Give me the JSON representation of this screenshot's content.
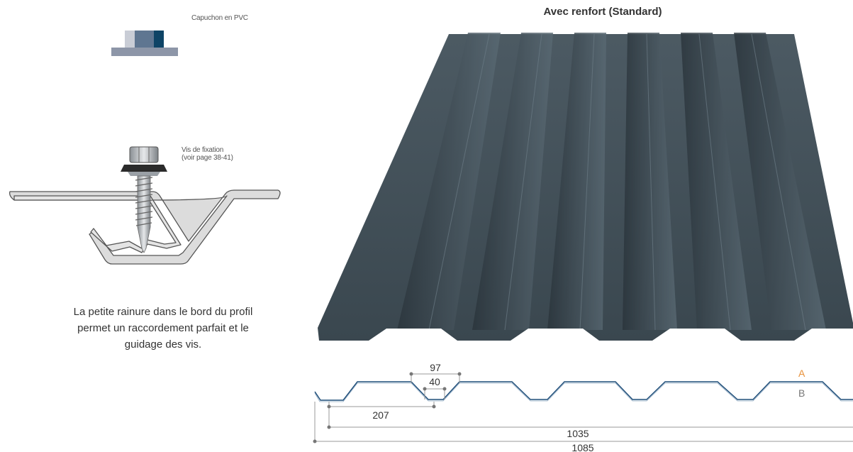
{
  "left_panel": {
    "cap_label": "Capuchon en PVC",
    "screw_label_line1": "Vis de fixation",
    "screw_label_line2": "(voir page 38-41)",
    "description_line1": "La petite rainure dans le bord du profil",
    "description_line2": "permet un raccordement parfait et le",
    "description_line3": "guidage des vis."
  },
  "right_panel": {
    "title": "Avec renfort (Standard)",
    "side_a": "A",
    "side_b": "B",
    "dimensions": {
      "rib_top": "97",
      "rib_bottom": "40",
      "pitch": "207",
      "useful_width": "1035",
      "total_width": "1085"
    }
  },
  "colors": {
    "sheet": "#3d4a52",
    "profile_line": "#1f4e79",
    "side_a": "#e8913a",
    "side_b": "#777777",
    "cap_light": "#c9cdd6",
    "cap_mid": "#5f7691",
    "cap_dark": "#0e4466",
    "cap_base": "#8d96a8"
  }
}
